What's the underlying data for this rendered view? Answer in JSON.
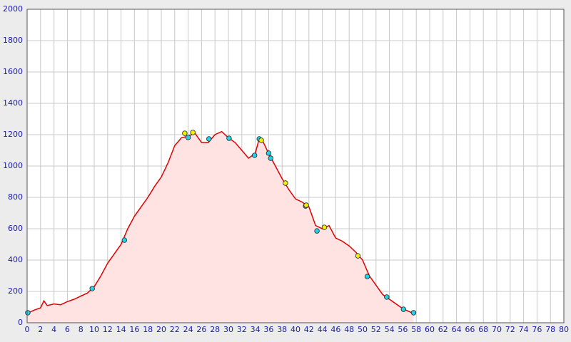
{
  "chart_data": {
    "type": "area",
    "x": [
      0,
      1,
      2,
      2.5,
      3,
      4,
      5,
      6,
      7,
      8,
      9,
      10,
      11,
      12,
      13,
      14,
      15,
      16,
      17,
      18,
      19,
      20,
      21,
      22,
      23,
      24,
      25,
      26,
      27,
      28,
      29,
      30,
      31,
      32,
      33,
      34,
      34.5,
      35,
      36,
      37,
      38,
      39,
      40,
      41,
      42,
      43,
      44,
      45,
      46,
      47,
      48,
      49,
      50,
      51,
      52,
      53,
      54,
      55,
      56,
      57,
      57.6
    ],
    "values": [
      60,
      80,
      95,
      140,
      110,
      120,
      115,
      135,
      150,
      170,
      190,
      230,
      300,
      380,
      440,
      500,
      600,
      680,
      740,
      800,
      870,
      930,
      1020,
      1130,
      1180,
      1190,
      1210,
      1150,
      1150,
      1200,
      1220,
      1180,
      1150,
      1100,
      1050,
      1080,
      1160,
      1170,
      1080,
      1000,
      920,
      850,
      790,
      770,
      740,
      620,
      600,
      620,
      540,
      520,
      490,
      450,
      400,
      300,
      240,
      180,
      150,
      120,
      90,
      70,
      60
    ],
    "line_color": "#e00000",
    "fill_color": "#ffe3e3",
    "markers": [
      {
        "color": "#22d3e6",
        "x": [
          0.1,
          9.7,
          14.5,
          24.0,
          27.1,
          30.1,
          33.9,
          34.6,
          36.0,
          36.3,
          41.5,
          43.2,
          50.7,
          53.6,
          56.1,
          57.6
        ],
        "values": [
          64,
          218,
          527,
          1182,
          1173,
          1177,
          1068,
          1173,
          1082,
          1050,
          745,
          586,
          295,
          164,
          86,
          64
        ]
      },
      {
        "color": "#f5f000",
        "x": [
          23.5,
          24.7,
          34.9,
          38.5,
          41.6,
          44.3,
          49.3
        ],
        "values": [
          1209,
          1214,
          1164,
          891,
          750,
          609,
          427
        ]
      }
    ],
    "xlim": [
      0,
      80
    ],
    "xticks": [
      0,
      2,
      4,
      6,
      8,
      10,
      12,
      14,
      16,
      18,
      20,
      22,
      24,
      26,
      28,
      30,
      32,
      34,
      36,
      38,
      40,
      42,
      44,
      46,
      48,
      50,
      52,
      54,
      56,
      58,
      60,
      62,
      64,
      66,
      68,
      70,
      72,
      74,
      76,
      78,
      80
    ],
    "ylim": [
      0,
      2000
    ],
    "yticks": [
      0,
      200,
      400,
      600,
      800,
      1000,
      1200,
      1400,
      1600,
      1800,
      2000
    ],
    "grid": true
  }
}
